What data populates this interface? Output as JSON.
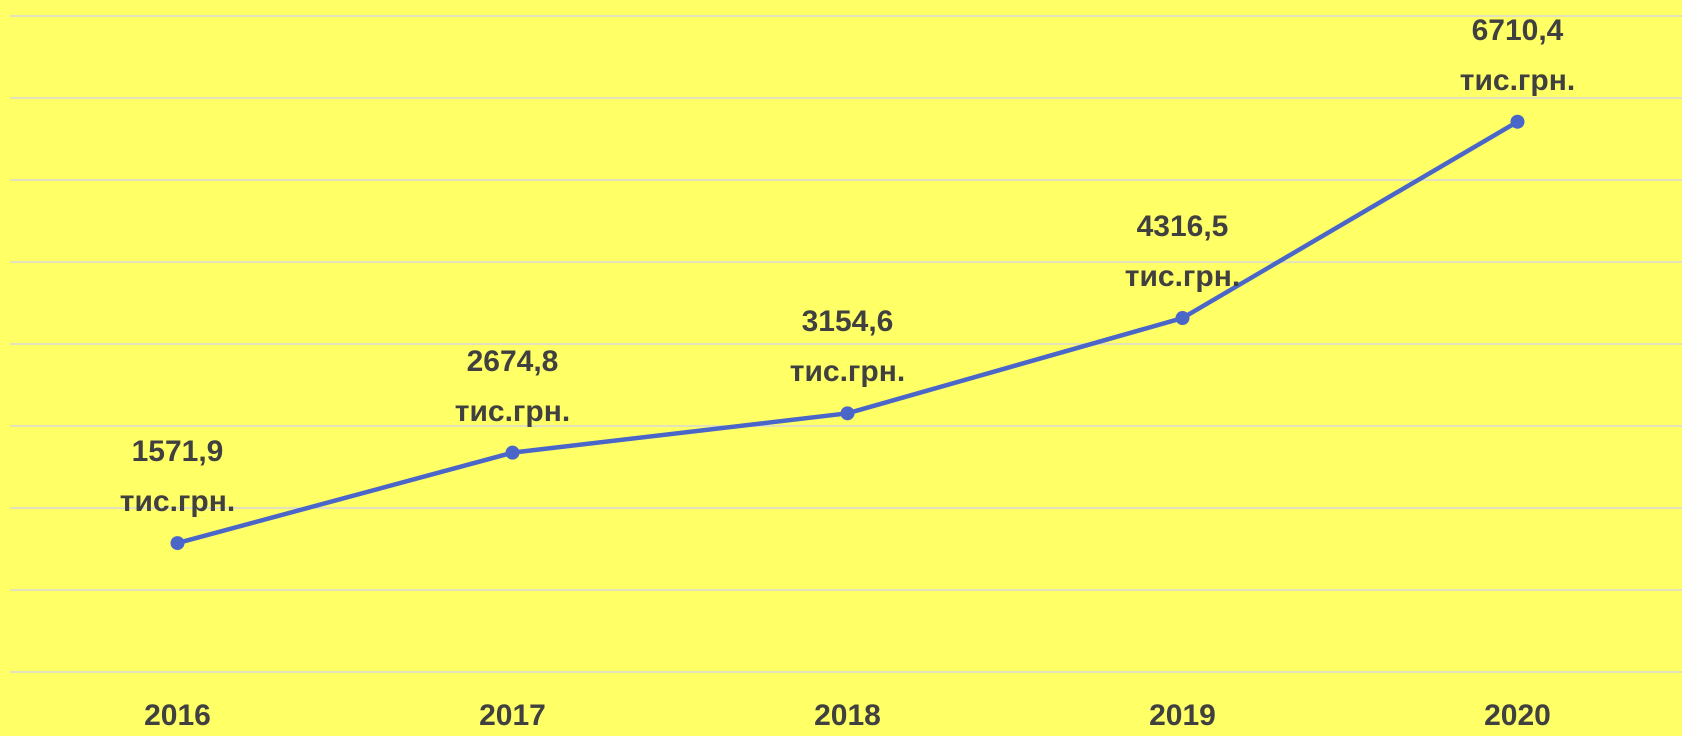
{
  "chart_data": {
    "type": "line",
    "categories": [
      "2016",
      "2017",
      "2018",
      "2019",
      "2020"
    ],
    "series": [
      {
        "name": null,
        "color": "#4a66c9",
        "values": [
          1571.9,
          2674.8,
          3154.6,
          4316.5,
          6710.4
        ],
        "value_labels": [
          "1571,9\nтис.грн.",
          "2674,8\nтис.грн.",
          "3154,6\nтис.грн.",
          "4316,5\nтис.грн.",
          "6710,4\nтис.грн."
        ]
      }
    ],
    "ylim": [
      0,
      8000
    ],
    "yticks": [
      0,
      1000,
      2000,
      3000,
      4000,
      5000,
      6000,
      7000,
      8000
    ],
    "grid": true,
    "background": "#ffff66"
  }
}
